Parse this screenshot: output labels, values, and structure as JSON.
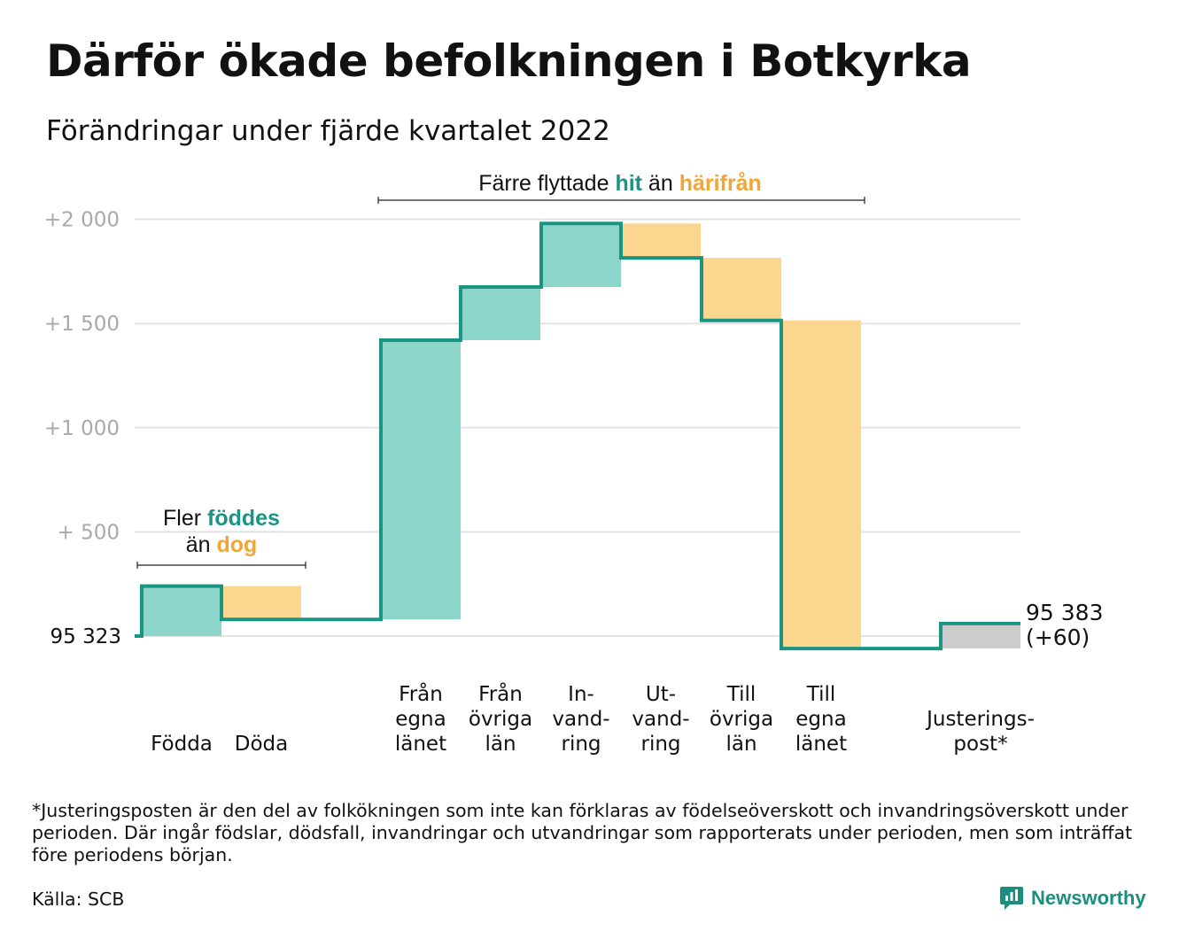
{
  "title": "Därför ökade befolkningen i Botkyrka",
  "subtitle": "Förändringar under fjärde kvartalet 2022",
  "colors": {
    "teal_line": "#1a9583",
    "teal_fill": "#8cd5cb",
    "orange_fill": "#fbd68f",
    "orange_text": "#f2a533",
    "gray_fill": "#cccccc",
    "grid": "#e3e3e3",
    "tick_text": "#a9a9a9",
    "teal_text": "#1a9583"
  },
  "annotations": {
    "top_group": {
      "prefix": "Färre flyttade ",
      "teal": "hit",
      "middle": " än ",
      "orange": "härifrån"
    },
    "left_group": {
      "line1_prefix": "Fler ",
      "line1_teal": "föddes",
      "line2_prefix": "än ",
      "line2_orange": "dog"
    }
  },
  "chart_data": {
    "type": "waterfall",
    "base_label": "95 323",
    "end_label": "95 383",
    "end_change_label": "(+60)",
    "ylim": [
      -90,
      2100
    ],
    "yticks": [
      {
        "value": 500,
        "label": "+ 500"
      },
      {
        "value": 1000,
        "label": "+1 000"
      },
      {
        "value": 1500,
        "label": "+1 500"
      },
      {
        "value": 2000,
        "label": "+2 000"
      }
    ],
    "steps": [
      {
        "label": [
          "Födda"
        ],
        "delta": 240,
        "kind": "in"
      },
      {
        "label": [
          "Döda"
        ],
        "delta": -160,
        "kind": "out"
      },
      {
        "label": [
          "Från",
          "egna",
          "länet"
        ],
        "delta": 1340,
        "kind": "in"
      },
      {
        "label": [
          "Från",
          "övriga",
          "län"
        ],
        "delta": 255,
        "kind": "in"
      },
      {
        "label": [
          "In-",
          "vand-",
          "ring"
        ],
        "delta": 305,
        "kind": "in"
      },
      {
        "label": [
          "Ut-",
          "vand-",
          "ring"
        ],
        "delta": -165,
        "kind": "out"
      },
      {
        "label": [
          "Till",
          "övriga",
          "län"
        ],
        "delta": -300,
        "kind": "out"
      },
      {
        "label": [
          "Till",
          "egna",
          "länet"
        ],
        "delta": -1575,
        "kind": "out"
      },
      {
        "label": [
          "Justerings-",
          "post*"
        ],
        "delta": 120,
        "kind": "adjust"
      }
    ]
  },
  "footnote": "*Justeringsposten är den del av folkökningen som inte kan förklaras av födelseöverskott och invandringsöverskott under perioden. Där ingår födslar, dödsfall, invandringar och utvandringar som rapporterats under perioden, men som inträffat före periodens början.",
  "source": "Källa: SCB",
  "brand": {
    "name": "Newsworthy",
    "icon": "newsworthy-logo-icon"
  }
}
